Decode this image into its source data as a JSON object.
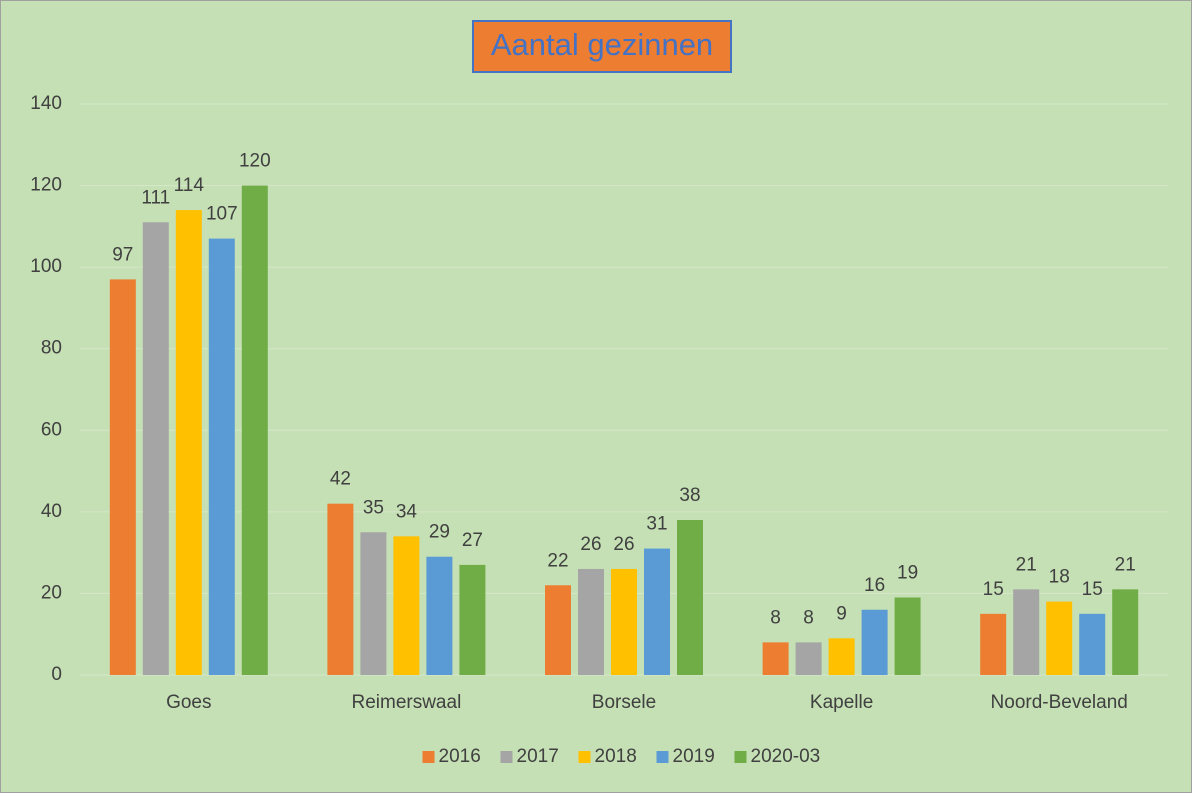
{
  "chart_data": {
    "type": "bar",
    "title": "Aantal gezinnen",
    "categories": [
      "Goes",
      "Reimerswaal",
      "Borsele",
      "Kapelle",
      "Noord-Beveland"
    ],
    "series": [
      {
        "name": "2016",
        "color": "#ed7d31",
        "values": [
          97,
          42,
          22,
          8,
          15
        ]
      },
      {
        "name": "2017",
        "color": "#a5a5a5",
        "values": [
          111,
          35,
          26,
          8,
          21
        ]
      },
      {
        "name": "2018",
        "color": "#ffc000",
        "values": [
          114,
          34,
          26,
          9,
          18
        ]
      },
      {
        "name": "2019",
        "color": "#5b9bd5",
        "values": [
          107,
          29,
          31,
          16,
          15
        ]
      },
      {
        "name": "2020-03",
        "color": "#70ad47",
        "values": [
          120,
          27,
          38,
          19,
          21
        ]
      }
    ],
    "ylim": [
      0,
      140
    ],
    "yticks": [
      0,
      20,
      40,
      60,
      80,
      100,
      120,
      140
    ],
    "grid": true,
    "legend": "bottom"
  }
}
